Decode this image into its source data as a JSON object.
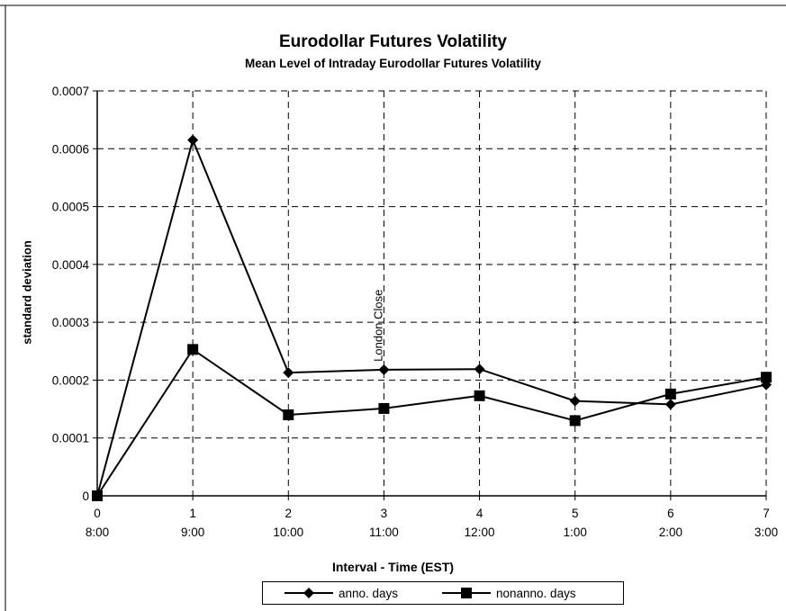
{
  "chart_data": {
    "type": "line",
    "title": "Eurodollar Futures Volatility",
    "subtitle": "Mean Level of Intraday Eurodollar Futures Volatility",
    "xlabel": "Interval - Time (EST)",
    "ylabel": "standard deviation",
    "x": [
      0,
      1,
      2,
      3,
      4,
      5,
      6,
      7
    ],
    "x_time_labels": [
      "8:00",
      "9:00",
      "10:00",
      "11:00",
      "12:00",
      "1:00",
      "2:00",
      "3:00"
    ],
    "xlim": [
      0,
      7
    ],
    "ylim": [
      0,
      0.0007
    ],
    "y_ticks": [
      "0",
      "0.0001",
      "0.0002",
      "0.0003",
      "0.0004",
      "0.0005",
      "0.0006",
      "0.0007"
    ],
    "grid": true,
    "series": [
      {
        "name": "anno. days",
        "marker": "diamond",
        "color": "#000000",
        "values": [
          0,
          0.000615,
          0.000213,
          0.000218,
          0.000219,
          0.000164,
          0.000158,
          0.000192
        ]
      },
      {
        "name": "nonanno. days",
        "marker": "square",
        "color": "#000000",
        "values": [
          0,
          0.000253,
          0.00014,
          0.000151,
          0.000173,
          0.00013,
          0.000176,
          0.000205
        ]
      }
    ],
    "annotations": [
      {
        "text": "London Close",
        "x": 3,
        "orientation": "vertical"
      }
    ],
    "legend_position": "bottom"
  }
}
